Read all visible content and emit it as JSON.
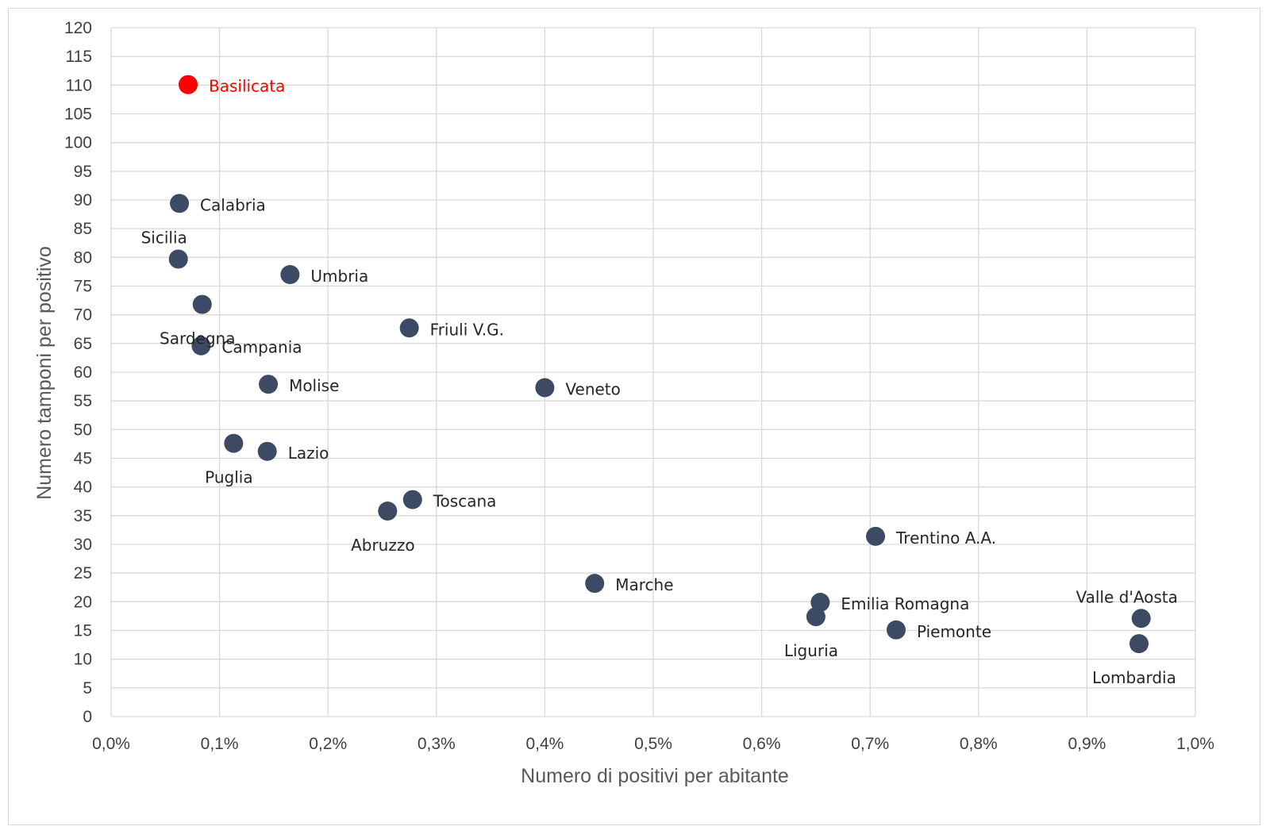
{
  "chart_data": {
    "type": "scatter",
    "title": "",
    "xlabel": "Numero di positivi per abitante",
    "ylabel": "Numero tamponi per positivo",
    "xlim": [
      0,
      1.0
    ],
    "ylim": [
      0,
      120
    ],
    "x_unit": "%",
    "x_ticks": [
      "0,0%",
      "0,1%",
      "0,2%",
      "0,3%",
      "0,4%",
      "0,5%",
      "0,6%",
      "0,7%",
      "0,8%",
      "0,9%",
      "1,0%"
    ],
    "y_ticks": [
      "0",
      "5",
      "10",
      "15",
      "20",
      "25",
      "30",
      "35",
      "40",
      "45",
      "50",
      "55",
      "60",
      "65",
      "70",
      "75",
      "80",
      "85",
      "90",
      "95",
      "100",
      "105",
      "110",
      "115",
      "120"
    ],
    "grid": true,
    "legend": "none",
    "colors": {
      "default": "#3d4a63",
      "highlight": "#ff0000"
    },
    "points": [
      {
        "label": "Basilicata",
        "x": 0.071,
        "y": 110.1,
        "highlight": true,
        "label_pos": "right"
      },
      {
        "label": "Calabria",
        "x": 0.063,
        "y": 89.4,
        "label_pos": "right"
      },
      {
        "label": "Sicilia",
        "x": 0.062,
        "y": 79.7,
        "label_pos": "above"
      },
      {
        "label": "Umbria",
        "x": 0.165,
        "y": 77.0,
        "label_pos": "right"
      },
      {
        "label": "Sardegna",
        "x": 0.084,
        "y": 71.8,
        "label_pos": "below"
      },
      {
        "label": "Friuli V.G.",
        "x": 0.275,
        "y": 67.7,
        "label_pos": "right"
      },
      {
        "label": "Campania",
        "x": 0.083,
        "y": 64.6,
        "label_pos": "right"
      },
      {
        "label": "Molise",
        "x": 0.145,
        "y": 57.9,
        "label_pos": "right"
      },
      {
        "label": "Veneto",
        "x": 0.4,
        "y": 57.3,
        "label_pos": "right"
      },
      {
        "label": "Puglia",
        "x": 0.113,
        "y": 47.6,
        "label_pos": "below"
      },
      {
        "label": "Lazio",
        "x": 0.144,
        "y": 46.2,
        "label_pos": "right"
      },
      {
        "label": "Toscana",
        "x": 0.278,
        "y": 37.8,
        "label_pos": "right"
      },
      {
        "label": "Abruzzo",
        "x": 0.255,
        "y": 35.8,
        "label_pos": "below"
      },
      {
        "label": "Trentino A.A.",
        "x": 0.705,
        "y": 31.4,
        "label_pos": "right"
      },
      {
        "label": "Marche",
        "x": 0.446,
        "y": 23.2,
        "label_pos": "right"
      },
      {
        "label": "Emilia Romagna",
        "x": 0.654,
        "y": 19.9,
        "label_pos": "right"
      },
      {
        "label": "Liguria",
        "x": 0.65,
        "y": 17.4,
        "label_pos": "below"
      },
      {
        "label": "Valle d'Aosta",
        "x": 0.95,
        "y": 17.1,
        "label_pos": "above"
      },
      {
        "label": "Piemonte",
        "x": 0.724,
        "y": 15.1,
        "label_pos": "right"
      },
      {
        "label": "Lombardia",
        "x": 0.948,
        "y": 12.7,
        "label_pos": "below"
      }
    ]
  }
}
